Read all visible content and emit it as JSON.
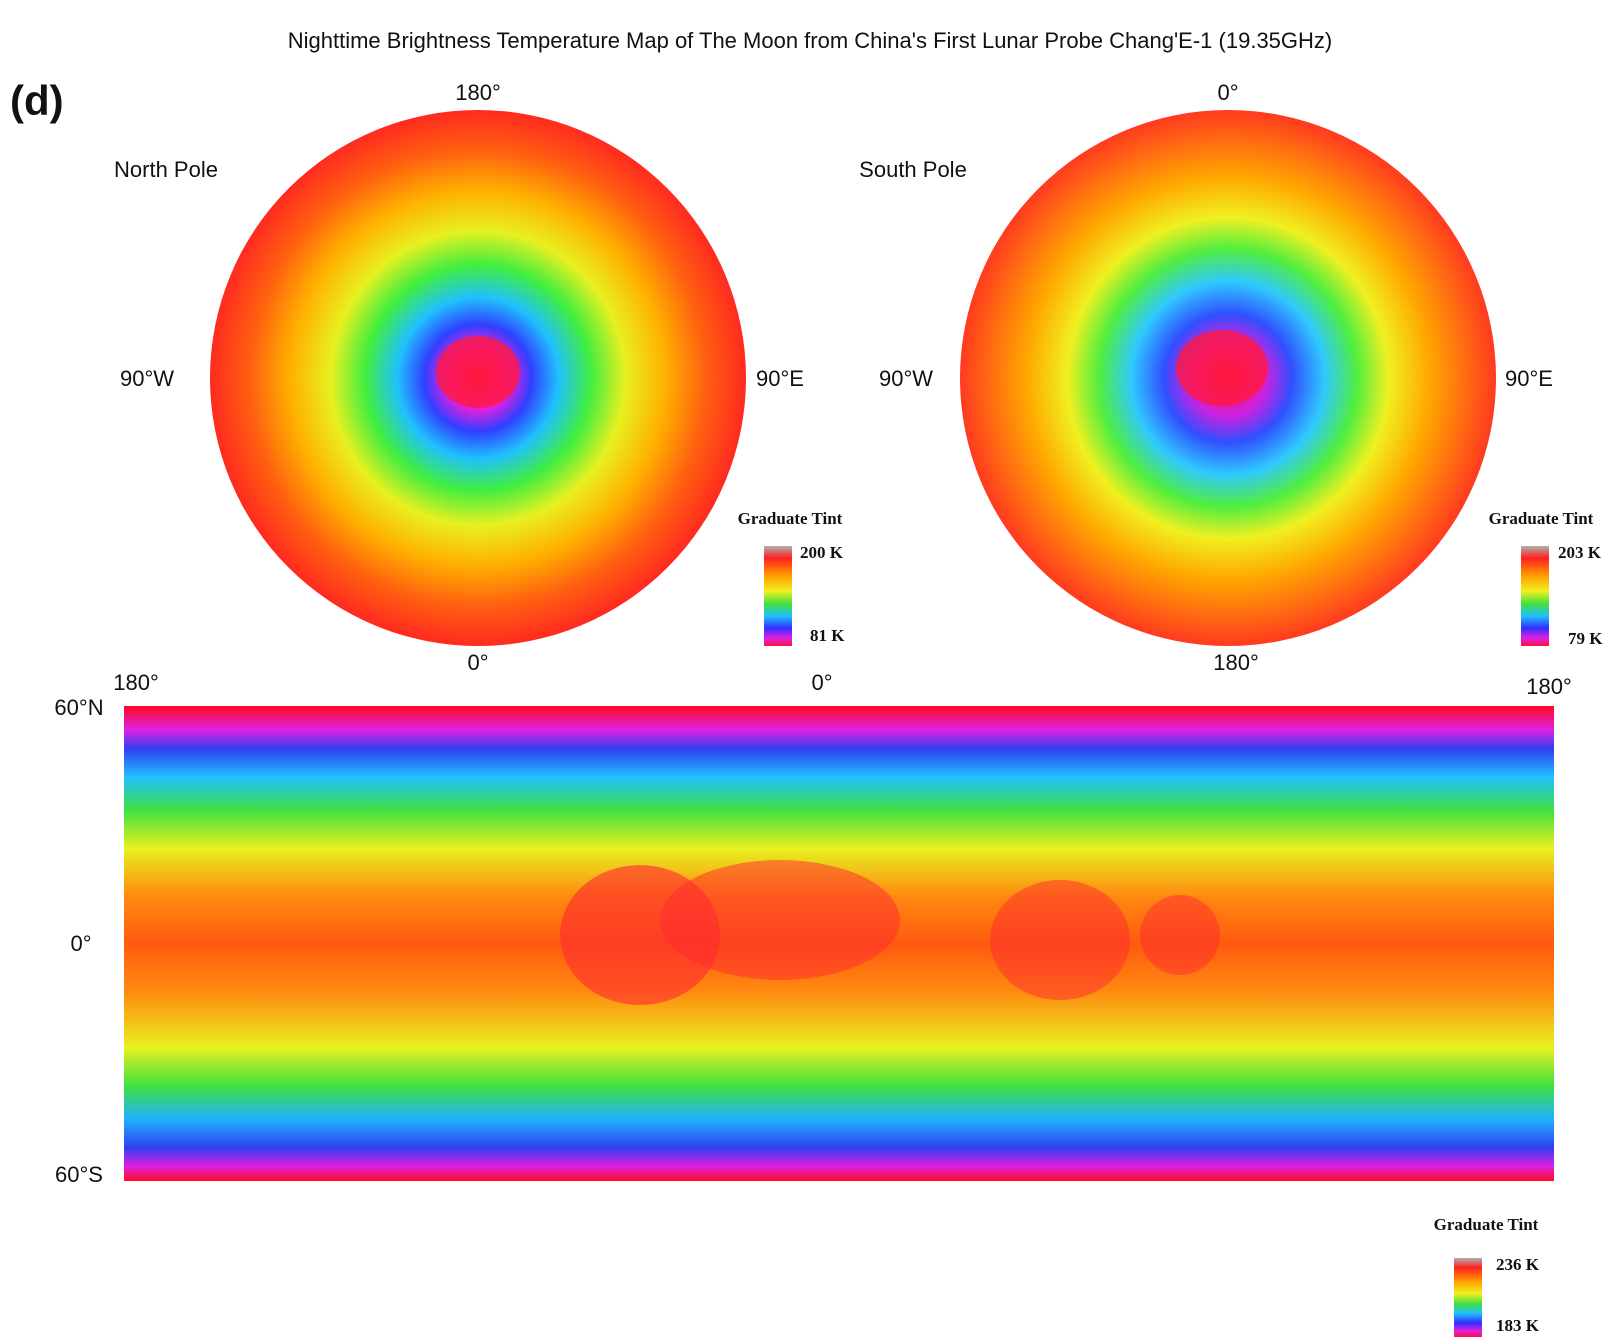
{
  "title": "Nighttime Brightness Temperature Map of The Moon from China's First Lunar Probe Chang'E-1 (19.35GHz)",
  "panel_label": "(d)",
  "north_pole": {
    "name": "North Pole",
    "top": "180°",
    "bottom": "0°",
    "left": "90°W",
    "right": "90°E",
    "legend": {
      "title": "Graduate Tint",
      "max": "200 K",
      "min": "81 K"
    }
  },
  "south_pole": {
    "name": "South Pole",
    "top": "0°",
    "bottom": "180°",
    "left": "90°W",
    "right": "90°E",
    "legend": {
      "title": "Graduate Tint",
      "max": "203 K",
      "min": "79 K"
    }
  },
  "cylindrical": {
    "lon_labels": [
      "180°",
      "0°",
      "180°"
    ],
    "lat_labels": [
      "60°N",
      "0°",
      "60°S"
    ],
    "legend": {
      "title": "Graduate Tint",
      "max": "236 K",
      "min": "183 K"
    }
  }
}
